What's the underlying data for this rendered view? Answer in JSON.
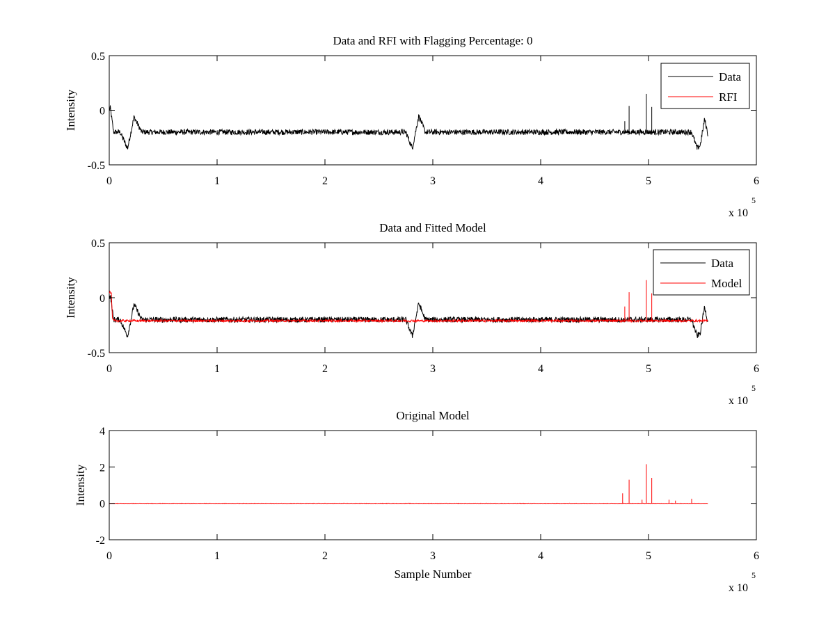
{
  "figure": {
    "background": "#ffffff"
  },
  "chart_data": [
    {
      "type": "line",
      "title": "Data and RFI with Flagging Percentage: 0",
      "xlabel": "",
      "ylabel": "Intensity",
      "xlim": [
        0,
        6
      ],
      "ylim": [
        -0.5,
        0.5
      ],
      "xticks": [
        0,
        1,
        2,
        3,
        4,
        5,
        6
      ],
      "yticks": [
        -0.5,
        0,
        0.5
      ],
      "xtick_labels": [
        "0",
        "1",
        "2",
        "3",
        "4",
        "5",
        "6"
      ],
      "ytick_labels": [
        "-0.5",
        "0",
        "0.5"
      ],
      "x_exponent": {
        "base": "x 10",
        "power": "5"
      },
      "grid": false,
      "legend_position": "top-right",
      "legend": [
        "Data",
        "RFI"
      ],
      "series": [
        {
          "name": "Data",
          "color": "#000000",
          "baseline": -0.2,
          "noise": 0.025,
          "x": [
            0,
            0.01,
            0.02,
            0.04,
            0.1,
            0.17,
            0.23,
            0.3,
            1,
            2,
            2.75,
            2.81,
            2.87,
            2.93,
            3,
            4,
            4.78,
            4.82,
            4.97,
            5.03,
            5.4,
            5.45,
            5.48,
            5.52,
            5.55
          ],
          "y": [
            0,
            0.02,
            -0.05,
            -0.2,
            -0.2,
            -0.35,
            -0.06,
            -0.2,
            -0.2,
            -0.2,
            -0.2,
            -0.35,
            -0.05,
            -0.2,
            -0.2,
            -0.2,
            -0.2,
            -0.2,
            -0.2,
            -0.2,
            -0.2,
            -0.35,
            -0.32,
            -0.08,
            -0.22
          ],
          "spikes": [
            {
              "x": 4.78,
              "peak": -0.1
            },
            {
              "x": 4.82,
              "peak": 0.04
            },
            {
              "x": 4.98,
              "peak": 0.15
            },
            {
              "x": 5.03,
              "peak": 0.03
            }
          ]
        },
        {
          "name": "RFI",
          "color": "#ff0000",
          "x": [],
          "y": []
        }
      ]
    },
    {
      "type": "line",
      "title": "Data and Fitted Model",
      "xlabel": "",
      "ylabel": "Intensity",
      "xlim": [
        0,
        6
      ],
      "ylim": [
        -0.5,
        0.5
      ],
      "xticks": [
        0,
        1,
        2,
        3,
        4,
        5,
        6
      ],
      "yticks": [
        -0.5,
        0,
        0.5
      ],
      "xtick_labels": [
        "0",
        "1",
        "2",
        "3",
        "4",
        "5",
        "6"
      ],
      "ytick_labels": [
        "-0.5",
        "0",
        "0.5"
      ],
      "x_exponent": {
        "base": "x 10",
        "power": "5"
      },
      "grid": false,
      "legend_position": "top-right",
      "legend": [
        "Data",
        "Model"
      ],
      "series": [
        {
          "name": "Data",
          "color": "#000000",
          "baseline": -0.2,
          "noise": 0.025,
          "x": [
            0,
            0.01,
            0.02,
            0.04,
            0.1,
            0.17,
            0.23,
            0.3,
            1,
            2,
            2.75,
            2.81,
            2.87,
            2.93,
            3,
            4,
            5.4,
            5.45,
            5.48,
            5.52,
            5.55
          ],
          "y": [
            0,
            0.02,
            -0.05,
            -0.2,
            -0.2,
            -0.35,
            -0.06,
            -0.2,
            -0.2,
            -0.2,
            -0.2,
            -0.35,
            -0.05,
            -0.2,
            -0.2,
            -0.2,
            -0.2,
            -0.35,
            -0.32,
            -0.08,
            -0.22
          ],
          "spikes": []
        },
        {
          "name": "Model",
          "color": "#ff0000",
          "baseline": -0.21,
          "noise": 0.01,
          "x": [
            0,
            0.01,
            0.02,
            0.03,
            0.05,
            5.55
          ],
          "y": [
            0.05,
            0.05,
            0.03,
            -0.2,
            -0.21,
            -0.21
          ],
          "spikes": [
            {
              "x": 4.78,
              "peak": -0.08
            },
            {
              "x": 4.82,
              "peak": 0.05
            },
            {
              "x": 4.98,
              "peak": 0.16
            },
            {
              "x": 5.03,
              "peak": 0.04
            }
          ]
        }
      ]
    },
    {
      "type": "line",
      "title": "Original Model",
      "xlabel": "Sample Number",
      "ylabel": "Intensity",
      "xlim": [
        0,
        6
      ],
      "ylim": [
        -2,
        4
      ],
      "xticks": [
        0,
        1,
        2,
        3,
        4,
        5,
        6
      ],
      "yticks": [
        -2,
        0,
        2,
        4
      ],
      "xtick_labels": [
        "0",
        "1",
        "2",
        "3",
        "4",
        "5",
        "6"
      ],
      "ytick_labels": [
        "-2",
        "0",
        "2",
        "4"
      ],
      "x_exponent": {
        "base": "x 10",
        "power": "5"
      },
      "grid": false,
      "legend": [],
      "series": [
        {
          "name": "Model",
          "color": "#ff0000",
          "baseline": 0,
          "noise": 0.01,
          "x": [
            0,
            5.55
          ],
          "y": [
            0,
            0
          ],
          "spikes": [
            {
              "x": 4.76,
              "peak": 0.55
            },
            {
              "x": 4.82,
              "peak": 1.3
            },
            {
              "x": 4.94,
              "peak": 0.2
            },
            {
              "x": 4.98,
              "peak": 2.15
            },
            {
              "x": 5.03,
              "peak": 1.4
            },
            {
              "x": 5.19,
              "peak": 0.2
            },
            {
              "x": 5.25,
              "peak": 0.15
            },
            {
              "x": 5.4,
              "peak": 0.25
            }
          ]
        }
      ]
    }
  ]
}
